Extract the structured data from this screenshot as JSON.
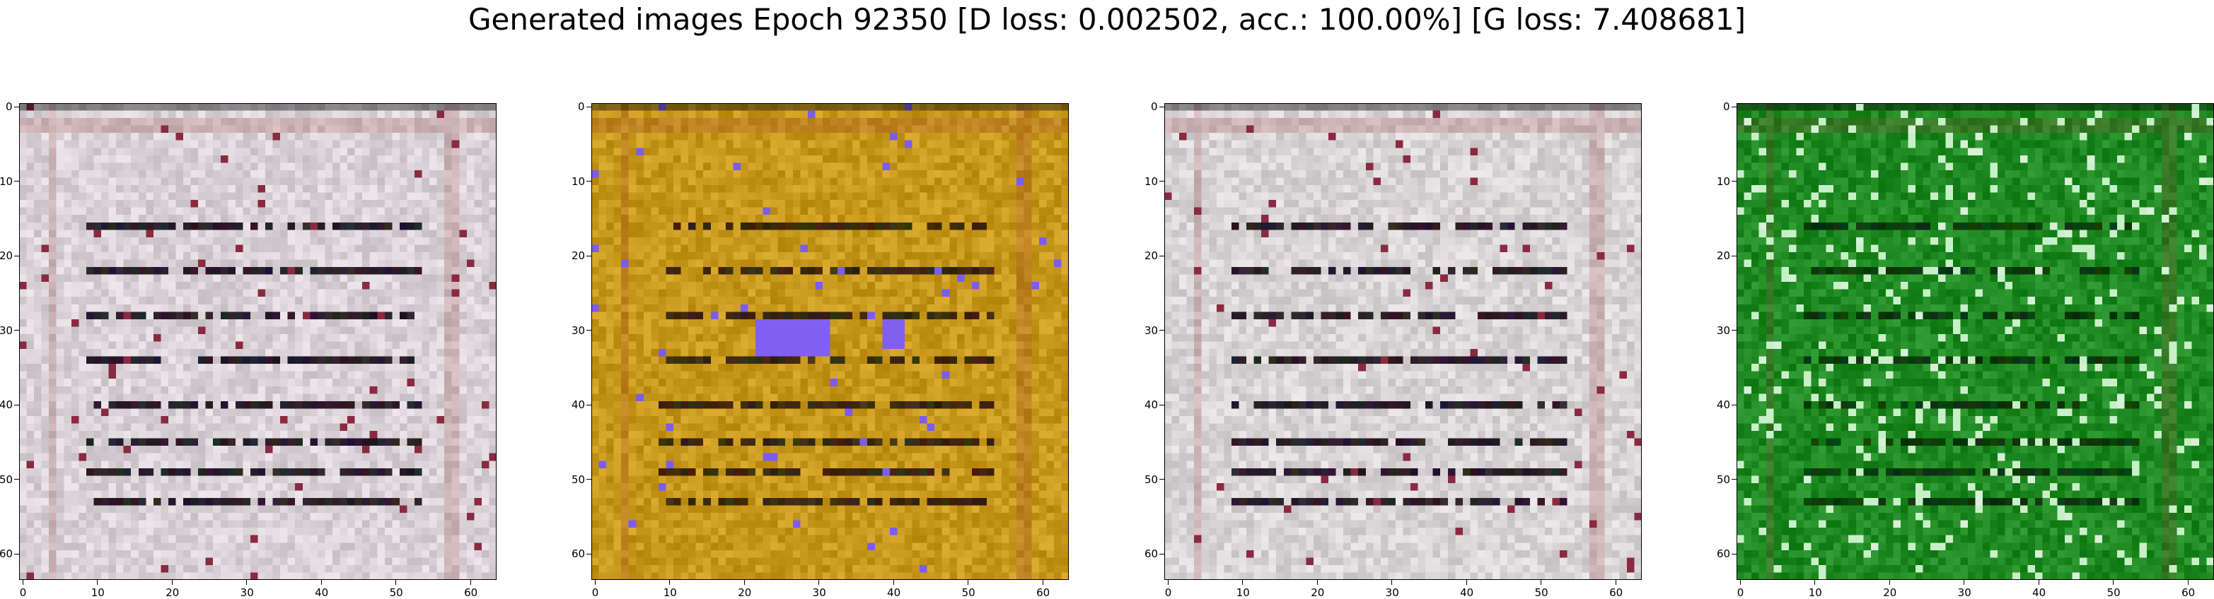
{
  "figure": {
    "title": "Generated images Epoch 92350 [D loss: 0.002502, acc.: 100.00%] [G loss: 7.408681]"
  },
  "axes": {
    "x_ticks": [
      "0",
      "10",
      "20",
      "30",
      "40",
      "50",
      "60"
    ],
    "y_ticks": [
      "0",
      "10",
      "20",
      "30",
      "40",
      "50",
      "60"
    ],
    "xlim": [
      -0.5,
      63.5
    ],
    "ylim": [
      63.5,
      -0.5
    ],
    "image_size": 64
  },
  "panels": [
    {
      "palette": "light-gray",
      "base_color": "#d9d3d7",
      "line_color": "#2a1f2a",
      "accent": "#8a2a40"
    },
    {
      "palette": "gold",
      "base_color": "#c8981c",
      "line_color": "#3a2a10",
      "accent": "#7a5cf0"
    },
    {
      "palette": "light-gray",
      "base_color": "#d9d4d6",
      "line_color": "#2a1f2a",
      "accent": "#8a2a40"
    },
    {
      "palette": "green",
      "base_color": "#1f8a22",
      "line_color": "#0b3a0c",
      "accent": "#d8f0d8"
    }
  ]
}
